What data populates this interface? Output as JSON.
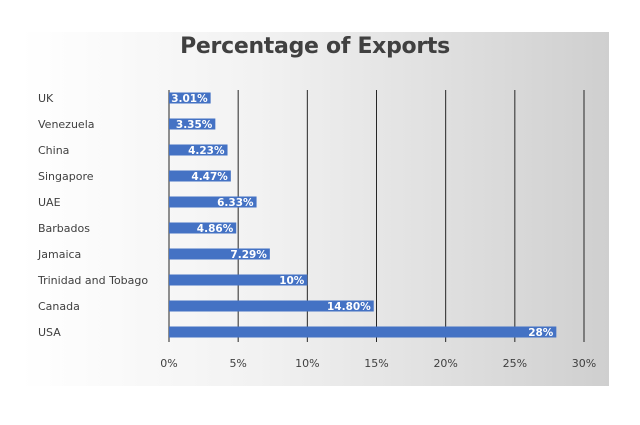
{
  "chart_data": {
    "type": "bar",
    "orientation": "horizontal",
    "title": "Percentage of Exports",
    "categories": [
      "UK",
      "Venezuela",
      "China",
      "Singapore",
      "UAE",
      "Barbados",
      "Jamaica",
      "Trinidad and Tobago",
      "Canada",
      "USA"
    ],
    "values": [
      3.01,
      3.35,
      4.23,
      4.47,
      6.33,
      4.86,
      7.29,
      10,
      14.8,
      28
    ],
    "data_labels": [
      "3.01%",
      "3.35%",
      "4.23%",
      "4.47%",
      "6.33%",
      "4.86%",
      "7.29%",
      "10%",
      "14.80%",
      "28%"
    ],
    "xlim": [
      0,
      30
    ],
    "x_ticks": [
      0,
      5,
      10,
      15,
      20,
      25,
      30
    ],
    "x_tick_labels": [
      "0%",
      "5%",
      "10%",
      "15%",
      "20%",
      "25%",
      "30%"
    ],
    "grid": true,
    "legend": "none",
    "bar_color": "#4472c4",
    "gridline_color": "#262626"
  }
}
